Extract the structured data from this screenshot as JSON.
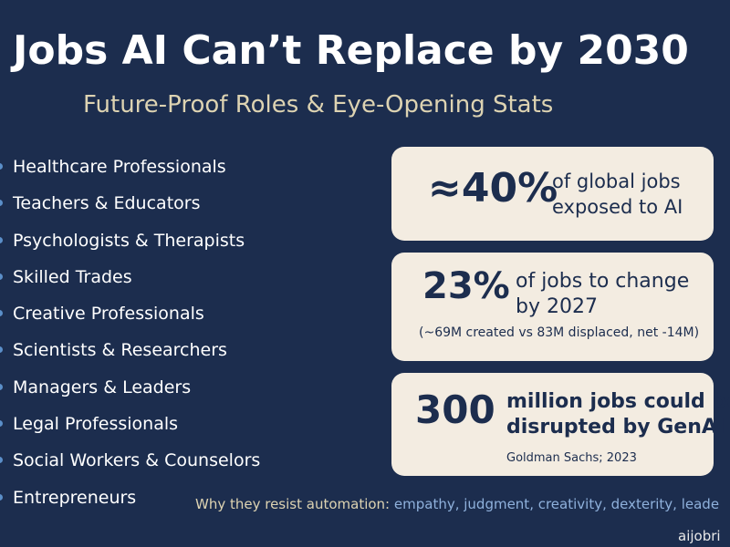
{
  "title": "Jobs AI Can’t Replace by 2030",
  "subtitle": "Future-Proof Roles & Eye-Opening Stats",
  "jobs": [
    "Healthcare Professionals",
    "Teachers & Educators",
    "Psychologists & Therapists",
    "Skilled Trades",
    "Creative Professionals",
    "Scientists & Researchers",
    "Managers & Leaders",
    "Legal Professionals",
    "Social Workers & Counselors",
    "Entrepreneurs"
  ],
  "stats": {
    "card1": {
      "figure": "≈40%",
      "line1": "of global jobs",
      "line2": "exposed to AI"
    },
    "card2": {
      "figure": "23%",
      "line1": "of jobs to change",
      "line2": "by 2027",
      "note": "(~69M created vs 83M displaced, net -14M)"
    },
    "card3": {
      "figure": "300",
      "line1": "million jobs could be",
      "line2": "disrupted by GenAI",
      "note": "Goldman Sachs; 2023"
    }
  },
  "footer": {
    "lead": "Why they resist automation:",
    "traits": "empathy, judgment, creativity, dexterity, leade"
  },
  "brand": "aijobri",
  "colors": {
    "background": "#1c2d4e",
    "card": "#f3ece1",
    "accent_cream": "#ddd3b2",
    "accent_blue": "#8fb1dc"
  }
}
